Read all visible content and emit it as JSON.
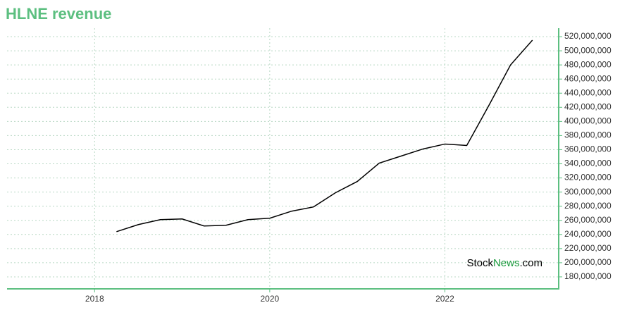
{
  "chart_data": {
    "type": "line",
    "title": "HLNE revenue",
    "x": [
      2018.25,
      2018.5,
      2018.75,
      2019,
      2019.25,
      2019.5,
      2019.75,
      2020,
      2020.25,
      2020.5,
      2020.75,
      2021,
      2021.25,
      2021.5,
      2021.75,
      2022,
      2022.25,
      2022.5,
      2022.75,
      2023
    ],
    "series": [
      {
        "color": "#000000",
        "values": [
          244000000,
          254000000,
          261000000,
          262000000,
          252000000,
          253000000,
          261000000,
          263000000,
          273000000,
          279000000,
          299000000,
          315000000,
          341000000,
          351000000,
          361000000,
          368000000,
          366000000,
          422000000,
          480000000,
          515000000
        ]
      }
    ],
    "xlim": [
      2017,
      2023.3
    ],
    "xticks": [
      2018,
      2020,
      2022
    ],
    "ylim": [
      163000000,
      532000000
    ],
    "yticks": [
      {
        "value": 180000000,
        "label": "180,000,000"
      },
      {
        "value": 200000000,
        "label": "200,000,000"
      },
      {
        "value": 220000000,
        "label": "220,000,000"
      },
      {
        "value": 240000000,
        "label": "240,000,000"
      },
      {
        "value": 260000000,
        "label": "260,000,000"
      },
      {
        "value": 280000000,
        "label": "280,000,000"
      },
      {
        "value": 300000000,
        "label": "300,000,000"
      },
      {
        "value": 320000000,
        "label": "320,000,000"
      },
      {
        "value": 340000000,
        "label": "340,000,000"
      },
      {
        "value": 360000000,
        "label": "360,000,000"
      },
      {
        "value": 380000000,
        "label": "380,000,000"
      },
      {
        "value": 400000000,
        "label": "400,000,000"
      },
      {
        "value": 420000000,
        "label": "420,000,000"
      },
      {
        "value": 440000000,
        "label": "440,000,000"
      },
      {
        "value": 460000000,
        "label": "460,000,000"
      },
      {
        "value": 480000000,
        "label": "480,000,000"
      },
      {
        "value": 500000000,
        "label": "500,000,000"
      },
      {
        "value": 520000000,
        "label": "520,000,000"
      }
    ],
    "grid": true,
    "axis_color": "#5cbf80",
    "watermark": [
      "Stock",
      "News",
      ".com"
    ]
  }
}
